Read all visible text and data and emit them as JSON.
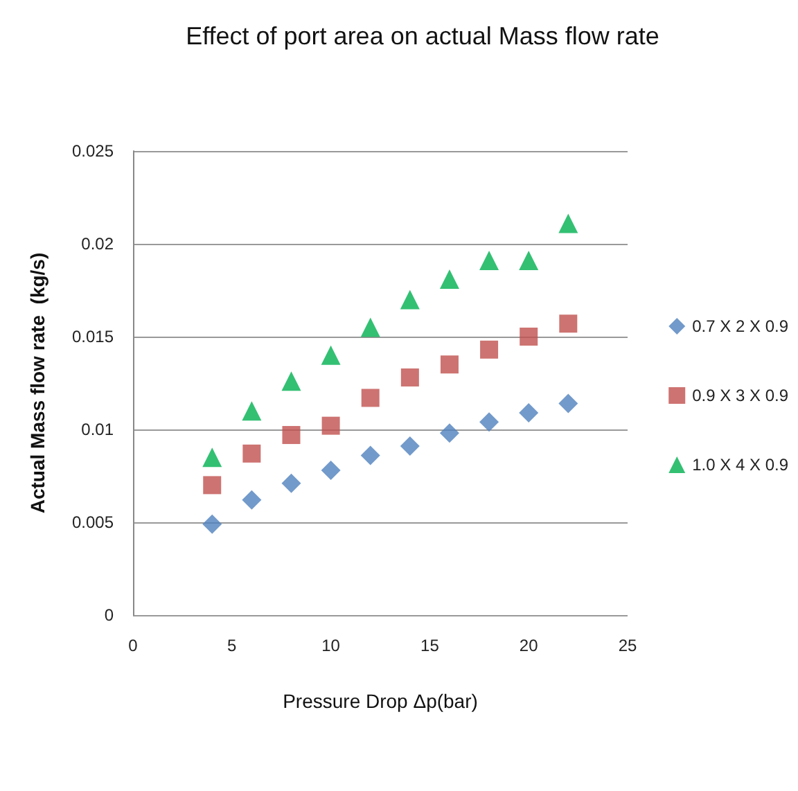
{
  "chart_data": {
    "type": "scatter",
    "title": "Effect of port area on actual Mass flow rate",
    "xlabel": "Pressure Drop Δp(bar)",
    "ylabel": "Actual Mass flow rate  (kg/s)",
    "x": [
      4,
      6,
      8,
      10,
      12,
      14,
      16,
      18,
      20,
      22
    ],
    "series": [
      {
        "name": "0.7 X 2 X 0.9",
        "color": "#4f81bd",
        "marker": "diamond",
        "values": [
          0.0049,
          0.0062,
          0.0071,
          0.0078,
          0.0086,
          0.0091,
          0.0098,
          0.0104,
          0.0109,
          0.0114
        ]
      },
      {
        "name": "0.9 X 3 X 0.9",
        "color": "#c0504d",
        "marker": "square",
        "values": [
          0.007,
          0.0087,
          0.0097,
          0.0102,
          0.0117,
          0.0128,
          0.0135,
          0.0143,
          0.015,
          0.0157
        ]
      },
      {
        "name": "1.0 X 4 X 0.9",
        "color": "#00b050",
        "marker": "triangle",
        "values": [
          0.0085,
          0.011,
          0.0126,
          0.014,
          0.0155,
          0.017,
          0.0181,
          0.0191,
          0.0191,
          0.0211
        ]
      }
    ],
    "xlim": [
      0,
      25
    ],
    "xticks": [
      0,
      5,
      10,
      15,
      20,
      25
    ],
    "ylim": [
      0,
      0.025
    ],
    "yticks": [
      0,
      0.005,
      0.01,
      0.015,
      0.02,
      0.025
    ],
    "grid": "y",
    "legend": "right"
  }
}
